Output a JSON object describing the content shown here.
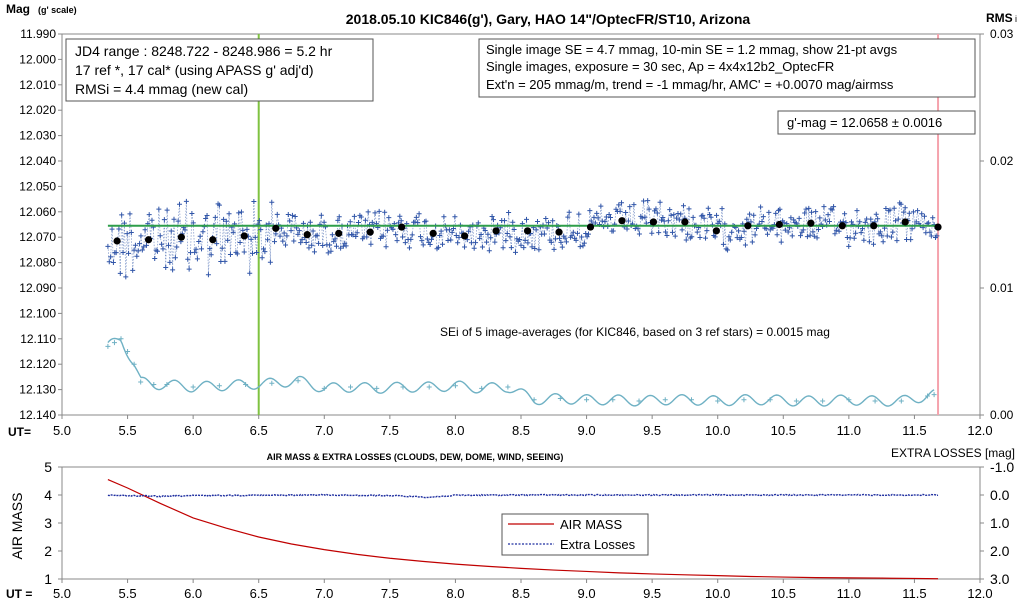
{
  "chart_data": [
    {
      "type": "scatter",
      "title": "2018.05.10  KIC846(g'),  Gary, HAO  14\"/OptecFR/ST10,  Arizona",
      "ylabel_main": "Mag",
      "ylabel_sub": "(g' scale)",
      "y2label": "RMS",
      "y2label_suffix": "i",
      "xlabel": "UT=",
      "xlim": [
        5.0,
        12.0
      ],
      "ylim": [
        12.14,
        11.99
      ],
      "y2lim": [
        0.0,
        0.03
      ],
      "xticks": [
        "5.0",
        "5.5",
        "6.0",
        "6.5",
        "7.0",
        "7.5",
        "8.0",
        "8.5",
        "9.0",
        "9.5",
        "10.0",
        "10.5",
        "11.0",
        "11.5",
        "12.0"
      ],
      "yticks": [
        "11.990",
        "12.000",
        "12.010",
        "12.020",
        "12.030",
        "12.040",
        "12.050",
        "12.060",
        "12.070",
        "12.080",
        "12.090",
        "12.100",
        "12.110",
        "12.120",
        "12.130",
        "12.140"
      ],
      "y2ticks": [
        "0.03",
        "0.02",
        "0.01",
        "0.00"
      ],
      "annotations": {
        "box1": [
          "JD4 range : 8248.722 - 8248.986 =  5.2  hr",
          "17 ref *, 17 cal* (using APASS g' adj'd)",
          "RMSi = 4.4 mmag (new cal)"
        ],
        "box2": [
          "Single image SE = 4.7 mmag, 10-min SE = 1.2 mmag, show  21-pt avgs",
          "Single images, exposure = 30 sec, Ap = 4x4x12b2_OptecFR",
          "Ext'n = 205 mmag/m, trend =  -1 mmag/hr, AMC' = +0.0070 mag/airmss"
        ],
        "gmag": "g'-mag = 12.0658 ± 0.0016",
        "sei": "SEi of 5 image-averages (for KIC846, based on 3 ref stars) = 0.0015  mag"
      },
      "vertical_line_ut": 6.5,
      "vertical_line_right_ut": 11.68,
      "fit_level": 12.0655,
      "colors": {
        "single": "#3055a8",
        "avg": "#000000",
        "fit": "#2e9e4a",
        "rms": "#6fb1c4",
        "vline": "#7fc241",
        "vline_right": "#f5a3ad"
      },
      "series": [
        {
          "name": "21-pt avgs",
          "x": [
            5.42,
            5.66,
            5.91,
            6.15,
            6.39,
            6.63,
            6.87,
            7.11,
            7.35,
            7.59,
            7.83,
            8.07,
            8.31,
            8.55,
            8.79,
            9.03,
            9.27,
            9.51,
            9.75,
            9.99,
            10.23,
            10.47,
            10.71,
            10.95,
            11.19,
            11.43,
            11.68
          ],
          "y": [
            12.0715,
            12.071,
            12.07,
            12.071,
            12.0695,
            12.0665,
            12.069,
            12.0685,
            12.068,
            12.066,
            12.0685,
            12.0695,
            12.0675,
            12.0675,
            12.068,
            12.066,
            12.0635,
            12.064,
            12.064,
            12.0675,
            12.0655,
            12.065,
            12.0645,
            12.0655,
            12.0655,
            12.064,
            12.066
          ]
        },
        {
          "name": "RMSi",
          "x": [
            5.35,
            5.4,
            5.45,
            5.5,
            5.55,
            5.6,
            5.7,
            5.8,
            6.0,
            6.2,
            6.4,
            6.6,
            6.8,
            7.0,
            7.2,
            7.4,
            7.6,
            7.8,
            8.0,
            8.2,
            8.4,
            8.6,
            8.8,
            9.0,
            9.2,
            9.4,
            9.6,
            9.8,
            10.0,
            10.2,
            10.4,
            10.6,
            10.8,
            11.0,
            11.2,
            11.4,
            11.6,
            11.65
          ],
          "y": [
            0.0054,
            0.0057,
            0.006,
            0.005,
            0.004,
            0.0026,
            0.0024,
            0.0024,
            0.0022,
            0.0023,
            0.0024,
            0.0025,
            0.0027,
            0.0021,
            0.0022,
            0.0021,
            0.0022,
            0.0022,
            0.0023,
            0.0021,
            0.0022,
            0.0012,
            0.0013,
            0.0012,
            0.0012,
            0.0011,
            0.0012,
            0.0012,
            0.0011,
            0.0012,
            0.0012,
            0.0011,
            0.0011,
            0.0012,
            0.0011,
            0.0011,
            0.0015,
            0.0016
          ]
        }
      ]
    },
    {
      "type": "line",
      "title": "AIR MASS & EXTRA LOSSES (CLOUDS, DEW, DOME, WIND, SEEING)",
      "xlabel": "UT =",
      "ylabel": "AIR MASS",
      "y2label": "EXTRA LOSSES [mag]",
      "xlim": [
        5.0,
        12.0
      ],
      "ylim": [
        1,
        5
      ],
      "y2lim": [
        3.0,
        -1.0
      ],
      "xticks": [
        "5.0",
        "5.5",
        "6.0",
        "6.5",
        "7.0",
        "7.5",
        "8.0",
        "8.5",
        "9.0",
        "9.5",
        "10.0",
        "10.5",
        "11.0",
        "11.5",
        "12.0"
      ],
      "yticks": [
        "5",
        "4",
        "3",
        "2",
        "1"
      ],
      "y2ticks": [
        "-1.0",
        "0.0",
        "1.0",
        "2.0",
        "3.0"
      ],
      "legend": [
        "AIR MASS",
        "Extra Losses"
      ],
      "colors": {
        "airmass": "#c00000",
        "losses": "#1f2fa0"
      },
      "series": [
        {
          "name": "AIR MASS",
          "x": [
            5.35,
            5.5,
            5.75,
            6.0,
            6.25,
            6.5,
            6.75,
            7.0,
            7.25,
            7.5,
            7.75,
            8.0,
            8.25,
            8.5,
            8.75,
            9.0,
            9.25,
            9.5,
            9.75,
            10.0,
            10.25,
            10.5,
            10.75,
            11.0,
            11.25,
            11.5,
            11.68
          ],
          "y": [
            4.55,
            4.25,
            3.7,
            3.18,
            2.82,
            2.5,
            2.25,
            2.05,
            1.88,
            1.74,
            1.63,
            1.53,
            1.45,
            1.38,
            1.32,
            1.27,
            1.22,
            1.18,
            1.15,
            1.12,
            1.09,
            1.07,
            1.05,
            1.04,
            1.03,
            1.02,
            1.01
          ]
        },
        {
          "name": "Extra Losses",
          "x": [
            5.35,
            5.5,
            5.75,
            6.0,
            6.5,
            7.0,
            7.5,
            7.8,
            8.0,
            8.5,
            9.0,
            9.5,
            10.0,
            10.5,
            11.0,
            11.5,
            11.68
          ],
          "y": [
            0.0,
            0.02,
            0.05,
            0.02,
            0.01,
            0.0,
            0.02,
            0.08,
            0.01,
            0.0,
            0.0,
            0.0,
            0.0,
            0.0,
            0.0,
            0.0,
            0.0
          ]
        }
      ]
    }
  ]
}
